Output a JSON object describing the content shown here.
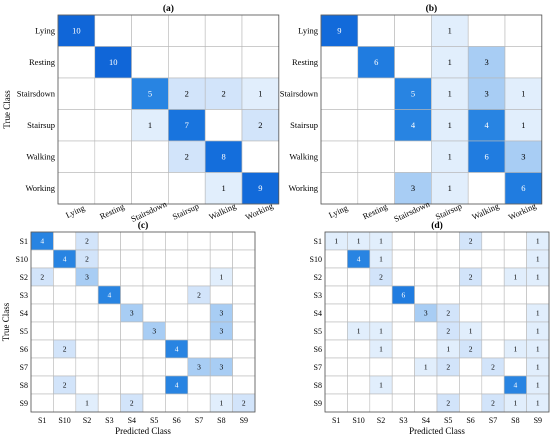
{
  "figure": {
    "ylabel": "True Class",
    "xlabel": "Predicted Class"
  },
  "chart_data": [
    {
      "type": "heatmap",
      "title": "(a)",
      "ylabel": "True Class",
      "xlabel": "",
      "classes": [
        "Lying",
        "Resting",
        "Stairsdown",
        "Stairsup",
        "Walking",
        "Working"
      ],
      "matrix": [
        [
          10,
          0,
          0,
          0,
          0,
          0
        ],
        [
          0,
          10,
          0,
          0,
          0,
          0
        ],
        [
          0,
          0,
          5,
          2,
          2,
          1
        ],
        [
          0,
          0,
          1,
          7,
          0,
          2
        ],
        [
          0,
          0,
          0,
          2,
          8,
          0
        ],
        [
          0,
          0,
          0,
          0,
          1,
          9
        ]
      ]
    },
    {
      "type": "heatmap",
      "title": "(b)",
      "ylabel": "",
      "xlabel": "",
      "classes": [
        "Lying",
        "Resting",
        "Stairsdown",
        "Stairsup",
        "Walking",
        "Working"
      ],
      "matrix": [
        [
          9,
          0,
          0,
          1,
          0,
          0
        ],
        [
          0,
          6,
          0,
          1,
          3,
          0
        ],
        [
          0,
          0,
          5,
          1,
          3,
          1
        ],
        [
          0,
          0,
          4,
          1,
          4,
          1
        ],
        [
          0,
          0,
          0,
          1,
          6,
          3
        ],
        [
          0,
          0,
          3,
          1,
          0,
          6
        ]
      ]
    },
    {
      "type": "heatmap",
      "title": "(c)",
      "ylabel": "True Class",
      "xlabel": "Predicted Class",
      "classes": [
        "S1",
        "S10",
        "S2",
        "S3",
        "S4",
        "S5",
        "S6",
        "S7",
        "S8",
        "S9"
      ],
      "matrix": [
        [
          4,
          0,
          2,
          0,
          0,
          0,
          0,
          0,
          0,
          0
        ],
        [
          0,
          4,
          2,
          0,
          0,
          0,
          0,
          0,
          0,
          0
        ],
        [
          2,
          0,
          3,
          0,
          0,
          0,
          0,
          0,
          1,
          0
        ],
        [
          0,
          0,
          0,
          4,
          0,
          0,
          0,
          2,
          0,
          0
        ],
        [
          0,
          0,
          0,
          0,
          3,
          0,
          0,
          0,
          3,
          0
        ],
        [
          0,
          0,
          0,
          0,
          0,
          3,
          0,
          0,
          3,
          0
        ],
        [
          0,
          2,
          0,
          0,
          0,
          0,
          4,
          0,
          0,
          0
        ],
        [
          0,
          0,
          0,
          0,
          0,
          0,
          0,
          3,
          3,
          0
        ],
        [
          0,
          2,
          0,
          0,
          0,
          0,
          4,
          0,
          0,
          0
        ],
        [
          0,
          0,
          1,
          0,
          2,
          0,
          0,
          0,
          1,
          2
        ]
      ]
    },
    {
      "type": "heatmap",
      "title": "(d)",
      "ylabel": "",
      "xlabel": "Predicted Class",
      "classes": [
        "S1",
        "S10",
        "S2",
        "S3",
        "S4",
        "S5",
        "S6",
        "S7",
        "S8",
        "S9"
      ],
      "matrix": [
        [
          1,
          1,
          1,
          0,
          0,
          0,
          2,
          0,
          0,
          1
        ],
        [
          0,
          4,
          1,
          0,
          0,
          0,
          0,
          0,
          0,
          1
        ],
        [
          0,
          0,
          2,
          0,
          0,
          0,
          2,
          0,
          1,
          1
        ],
        [
          0,
          0,
          0,
          6,
          0,
          0,
          0,
          0,
          0,
          0
        ],
        [
          0,
          0,
          0,
          0,
          3,
          2,
          0,
          0,
          0,
          1
        ],
        [
          0,
          1,
          1,
          0,
          0,
          2,
          1,
          0,
          0,
          1
        ],
        [
          0,
          0,
          1,
          0,
          0,
          1,
          2,
          0,
          1,
          1
        ],
        [
          0,
          0,
          0,
          0,
          1,
          2,
          0,
          2,
          0,
          1
        ],
        [
          0,
          0,
          1,
          0,
          0,
          0,
          0,
          0,
          4,
          1
        ],
        [
          0,
          0,
          0,
          0,
          0,
          2,
          0,
          2,
          1,
          1
        ]
      ]
    }
  ]
}
